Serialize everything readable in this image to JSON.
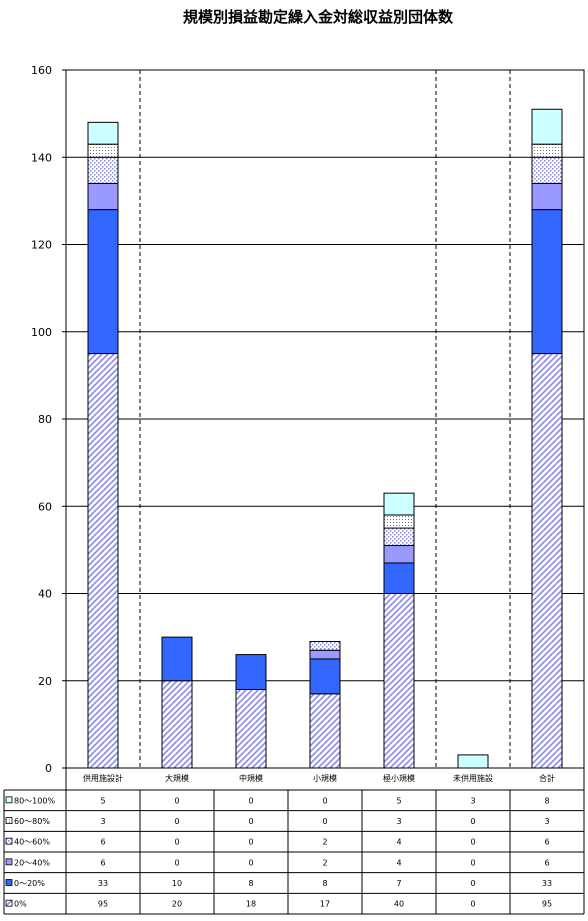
{
  "chart_data": {
    "type": "bar",
    "stacked": true,
    "title": "規模別損益勘定繰入金対総収益別団体数",
    "ylim": [
      0,
      160
    ],
    "yticks": [
      0,
      20,
      40,
      60,
      80,
      100,
      120,
      140,
      160
    ],
    "grid": true,
    "legend": "table-below",
    "categories": [
      "供用施設計",
      "大規模",
      "中規模",
      "小規模",
      "極小規模",
      "未供用施設",
      "合計"
    ],
    "series": [
      {
        "name": "0%",
        "values": [
          95,
          20,
          18,
          17,
          40,
          0,
          95
        ]
      },
      {
        "name": "0～20%",
        "values": [
          33,
          10,
          8,
          8,
          7,
          0,
          33
        ]
      },
      {
        "name": "20～40%",
        "values": [
          6,
          0,
          0,
          2,
          4,
          0,
          6
        ]
      },
      {
        "name": "40～60%",
        "values": [
          6,
          0,
          0,
          2,
          4,
          0,
          6
        ]
      },
      {
        "name": "60～80%",
        "values": [
          3,
          0,
          0,
          0,
          3,
          0,
          3
        ]
      },
      {
        "name": "80～100%",
        "values": [
          5,
          0,
          0,
          0,
          5,
          3,
          8
        ]
      }
    ],
    "colors": {
      "0%": "#9999ff",
      "0～20%": "#3366ff",
      "20～40%": "#9999ff",
      "40～60%": "#ccccff",
      "60～80%": "#ffffff",
      "80～100%": "#ccffff"
    }
  }
}
